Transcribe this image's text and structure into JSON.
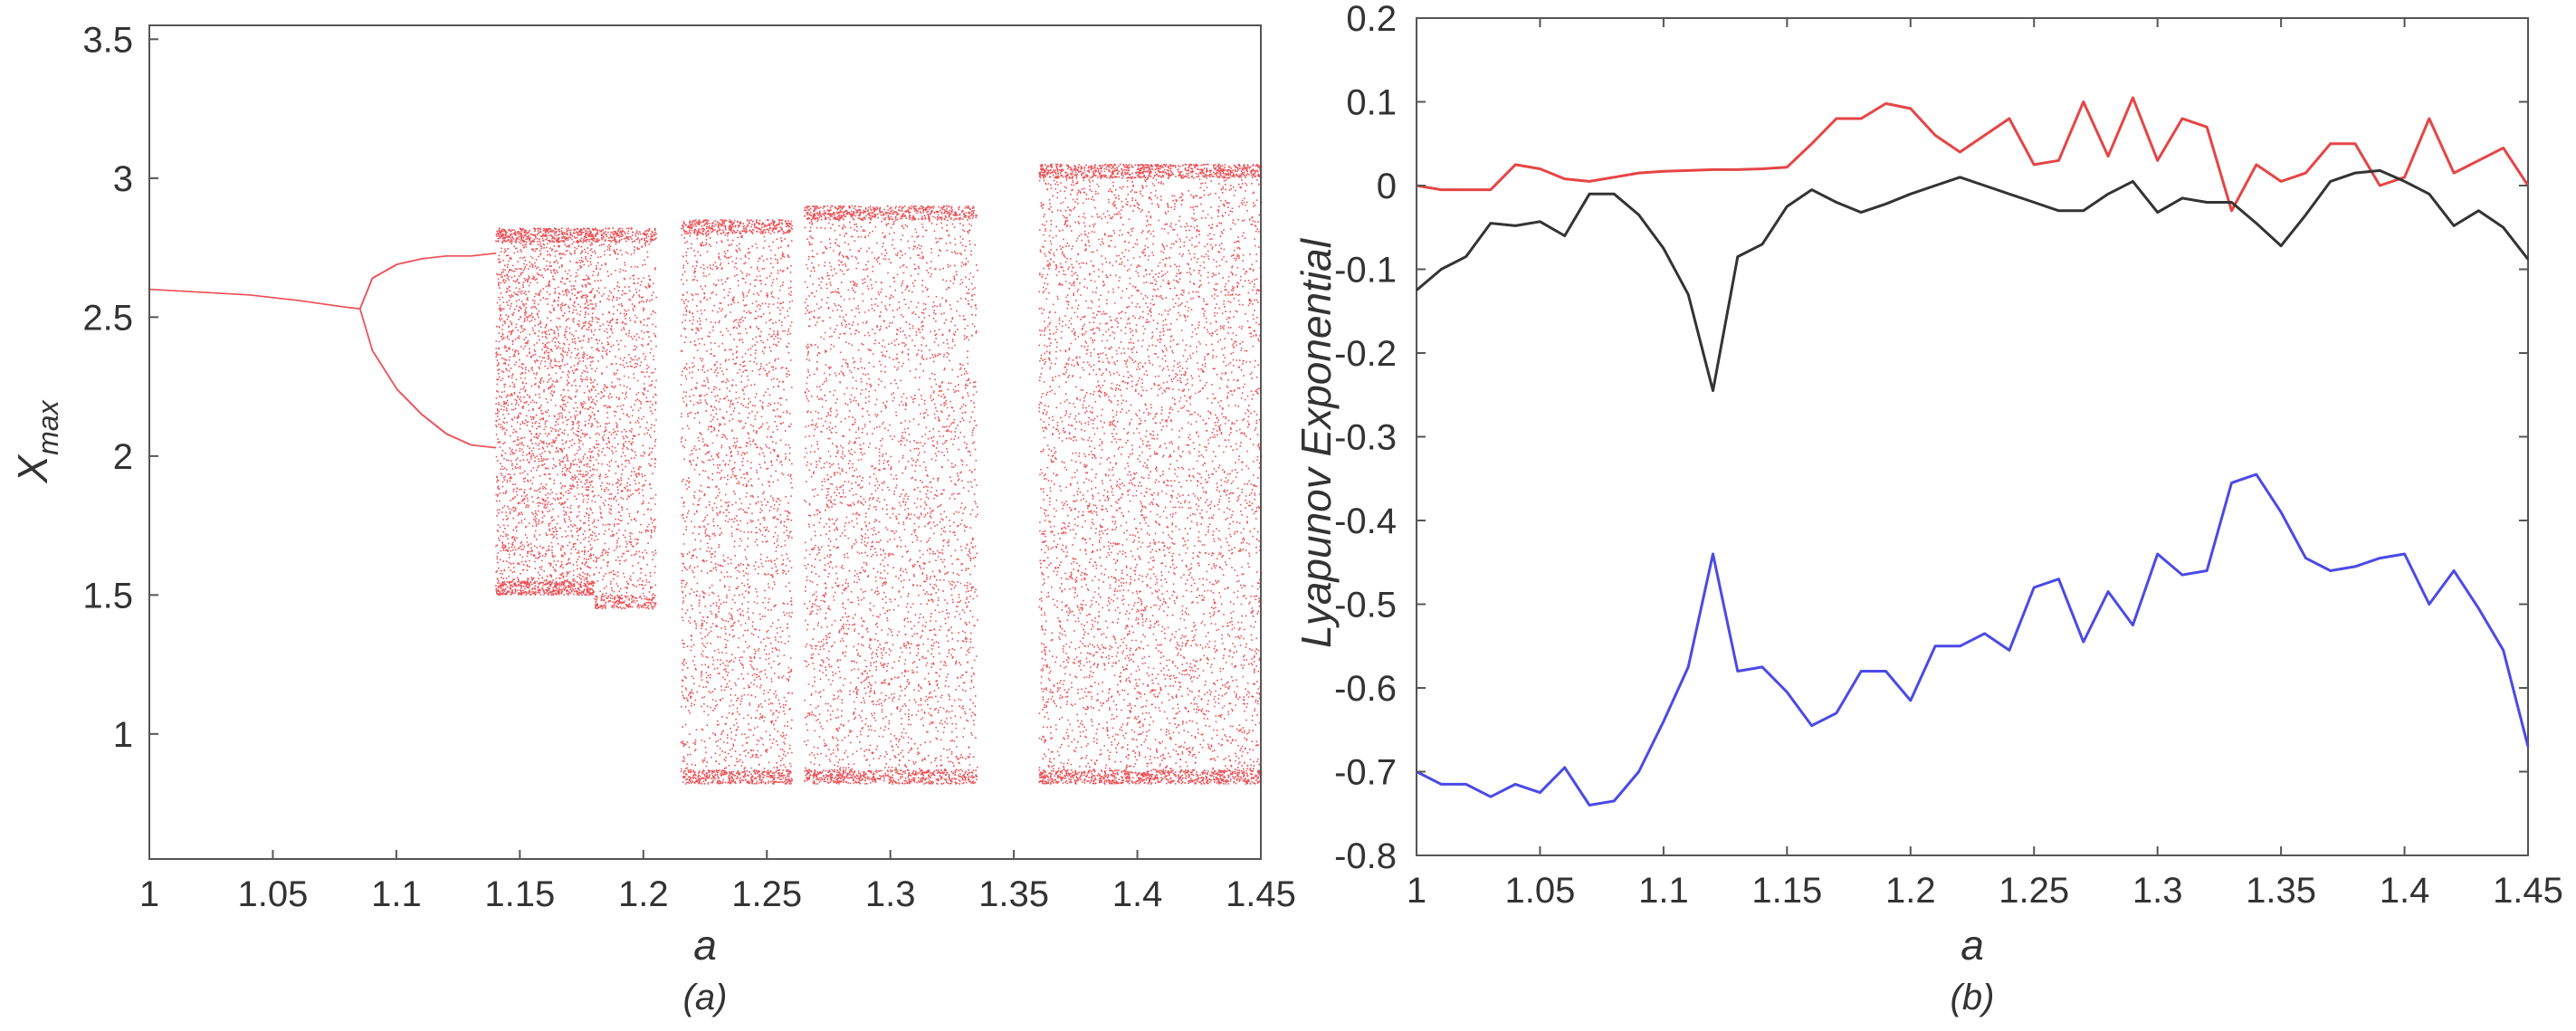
{
  "chart_data": [
    {
      "panel": "a",
      "type": "scatter",
      "caption": "(a)",
      "xlabel": "a",
      "ylabel": "X",
      "ylabel_sub": "max",
      "xlim": [
        1,
        1.45
      ],
      "ylim": [
        0.55,
        3.55
      ],
      "xticks": [
        1,
        1.05,
        1.1,
        1.15,
        1.2,
        1.25,
        1.3,
        1.35,
        1.4,
        1.45
      ],
      "xtick_labels": [
        "1",
        "1.05",
        "1.1",
        "1.15",
        "1.2",
        "1.25",
        "1.3",
        "1.35",
        "1.4",
        "1.45"
      ],
      "yticks": [
        1,
        1.5,
        2,
        2.5,
        3,
        3.5
      ],
      "ytick_labels": [
        "1",
        "1.5",
        "2",
        "2.5",
        "3",
        "3.5"
      ],
      "color": "#e8333a",
      "branches": [
        {
          "description": "single fixed branch",
          "x": [
            1.0,
            1.02,
            1.04,
            1.06,
            1.08,
            1.085
          ],
          "y": [
            2.6,
            2.59,
            2.58,
            2.56,
            2.535,
            2.53
          ]
        },
        {
          "description": "period-2 upper",
          "x": [
            1.085,
            1.09,
            1.1,
            1.11,
            1.12,
            1.13,
            1.14
          ],
          "y": [
            2.53,
            2.64,
            2.69,
            2.71,
            2.72,
            2.72,
            2.73
          ]
        },
        {
          "description": "period-2 lower",
          "x": [
            1.085,
            1.09,
            1.1,
            1.11,
            1.12,
            1.13,
            1.14
          ],
          "y": [
            2.53,
            2.38,
            2.24,
            2.15,
            2.08,
            2.04,
            2.03
          ]
        }
      ],
      "chaotic_bands": [
        {
          "x": [
            1.14,
            1.18
          ],
          "y": [
            1.5,
            2.82
          ],
          "density": 0.9
        },
        {
          "x": [
            1.18,
            1.205
          ],
          "y": [
            1.45,
            2.82
          ],
          "density": 0.6
        },
        {
          "x": [
            1.215,
            1.26
          ],
          "y": [
            0.82,
            2.85
          ],
          "density": 0.75
        },
        {
          "x": [
            1.265,
            1.335
          ],
          "y": [
            0.82,
            2.9
          ],
          "density": 0.7
        },
        {
          "x": [
            1.36,
            1.45
          ],
          "y": [
            0.82,
            3.05
          ],
          "density": 0.8
        }
      ]
    },
    {
      "panel": "b",
      "type": "line",
      "caption": "(b)",
      "xlabel": "a",
      "ylabel": "Lyapunov Exponential",
      "xlim": [
        1,
        1.45
      ],
      "ylim": [
        -0.8,
        0.2
      ],
      "xticks": [
        1,
        1.05,
        1.1,
        1.15,
        1.2,
        1.25,
        1.3,
        1.35,
        1.4,
        1.45
      ],
      "xtick_labels": [
        "1",
        "1.05",
        "1.1",
        "1.15",
        "1.2",
        "1.25",
        "1.3",
        "1.35",
        "1.4",
        "1.45"
      ],
      "yticks": [
        0.2,
        0.1,
        0,
        -0.1,
        -0.2,
        -0.3,
        -0.4,
        -0.5,
        -0.6,
        -0.7,
        -0.8
      ],
      "ytick_labels": [
        "0.2",
        "0.1",
        "0",
        "-0.1",
        "-0.2",
        "-0.3",
        "-0.4",
        "-0.5",
        "-0.6",
        "-0.7",
        "-0.8"
      ],
      "x": [
        1.0,
        1.01,
        1.02,
        1.03,
        1.04,
        1.05,
        1.06,
        1.07,
        1.08,
        1.09,
        1.1,
        1.11,
        1.12,
        1.13,
        1.14,
        1.15,
        1.16,
        1.17,
        1.18,
        1.19,
        1.2,
        1.21,
        1.22,
        1.23,
        1.24,
        1.25,
        1.26,
        1.27,
        1.28,
        1.29,
        1.3,
        1.31,
        1.32,
        1.33,
        1.34,
        1.35,
        1.36,
        1.37,
        1.38,
        1.39,
        1.4,
        1.41,
        1.42,
        1.43,
        1.44,
        1.45
      ],
      "series": [
        {
          "color": "#e54545",
          "values": [
            0.0,
            -0.005,
            -0.005,
            -0.005,
            0.025,
            0.02,
            0.008,
            0.005,
            0.01,
            0.015,
            0.017,
            0.018,
            0.019,
            0.019,
            0.02,
            0.022,
            0.05,
            0.08,
            0.08,
            0.098,
            0.092,
            0.06,
            0.04,
            0.06,
            0.08,
            0.025,
            0.03,
            0.1,
            0.035,
            0.105,
            0.03,
            0.08,
            0.07,
            -0.03,
            0.025,
            0.005,
            0.015,
            0.05,
            0.05,
            0.0,
            0.01,
            0.08,
            0.015,
            0.03,
            0.045,
            0.0
          ]
        },
        {
          "color": "#333333",
          "values": [
            -0.125,
            -0.1,
            -0.085,
            -0.045,
            -0.048,
            -0.043,
            -0.06,
            -0.01,
            -0.01,
            -0.035,
            -0.075,
            -0.13,
            -0.245,
            -0.085,
            -0.07,
            -0.025,
            -0.005,
            -0.02,
            -0.032,
            -0.022,
            -0.01,
            0.0,
            0.01,
            0.0,
            -0.01,
            -0.02,
            -0.03,
            -0.03,
            -0.01,
            0.005,
            -0.032,
            -0.015,
            -0.02,
            -0.02,
            -0.045,
            -0.072,
            -0.035,
            0.005,
            0.015,
            0.018,
            0.005,
            -0.01,
            -0.048,
            -0.03,
            -0.05,
            -0.088
          ]
        },
        {
          "color": "#4a4ae6",
          "values": [
            -0.7,
            -0.715,
            -0.715,
            -0.73,
            -0.715,
            -0.725,
            -0.695,
            -0.74,
            -0.735,
            -0.7,
            -0.64,
            -0.575,
            -0.44,
            -0.58,
            -0.575,
            -0.605,
            -0.645,
            -0.63,
            -0.58,
            -0.58,
            -0.615,
            -0.55,
            -0.55,
            -0.535,
            -0.555,
            -0.48,
            -0.47,
            -0.545,
            -0.485,
            -0.525,
            -0.44,
            -0.465,
            -0.46,
            -0.355,
            -0.345,
            -0.39,
            -0.445,
            -0.46,
            -0.455,
            -0.445,
            -0.44,
            -0.5,
            -0.46,
            -0.505,
            -0.555,
            -0.67
          ]
        }
      ]
    }
  ]
}
